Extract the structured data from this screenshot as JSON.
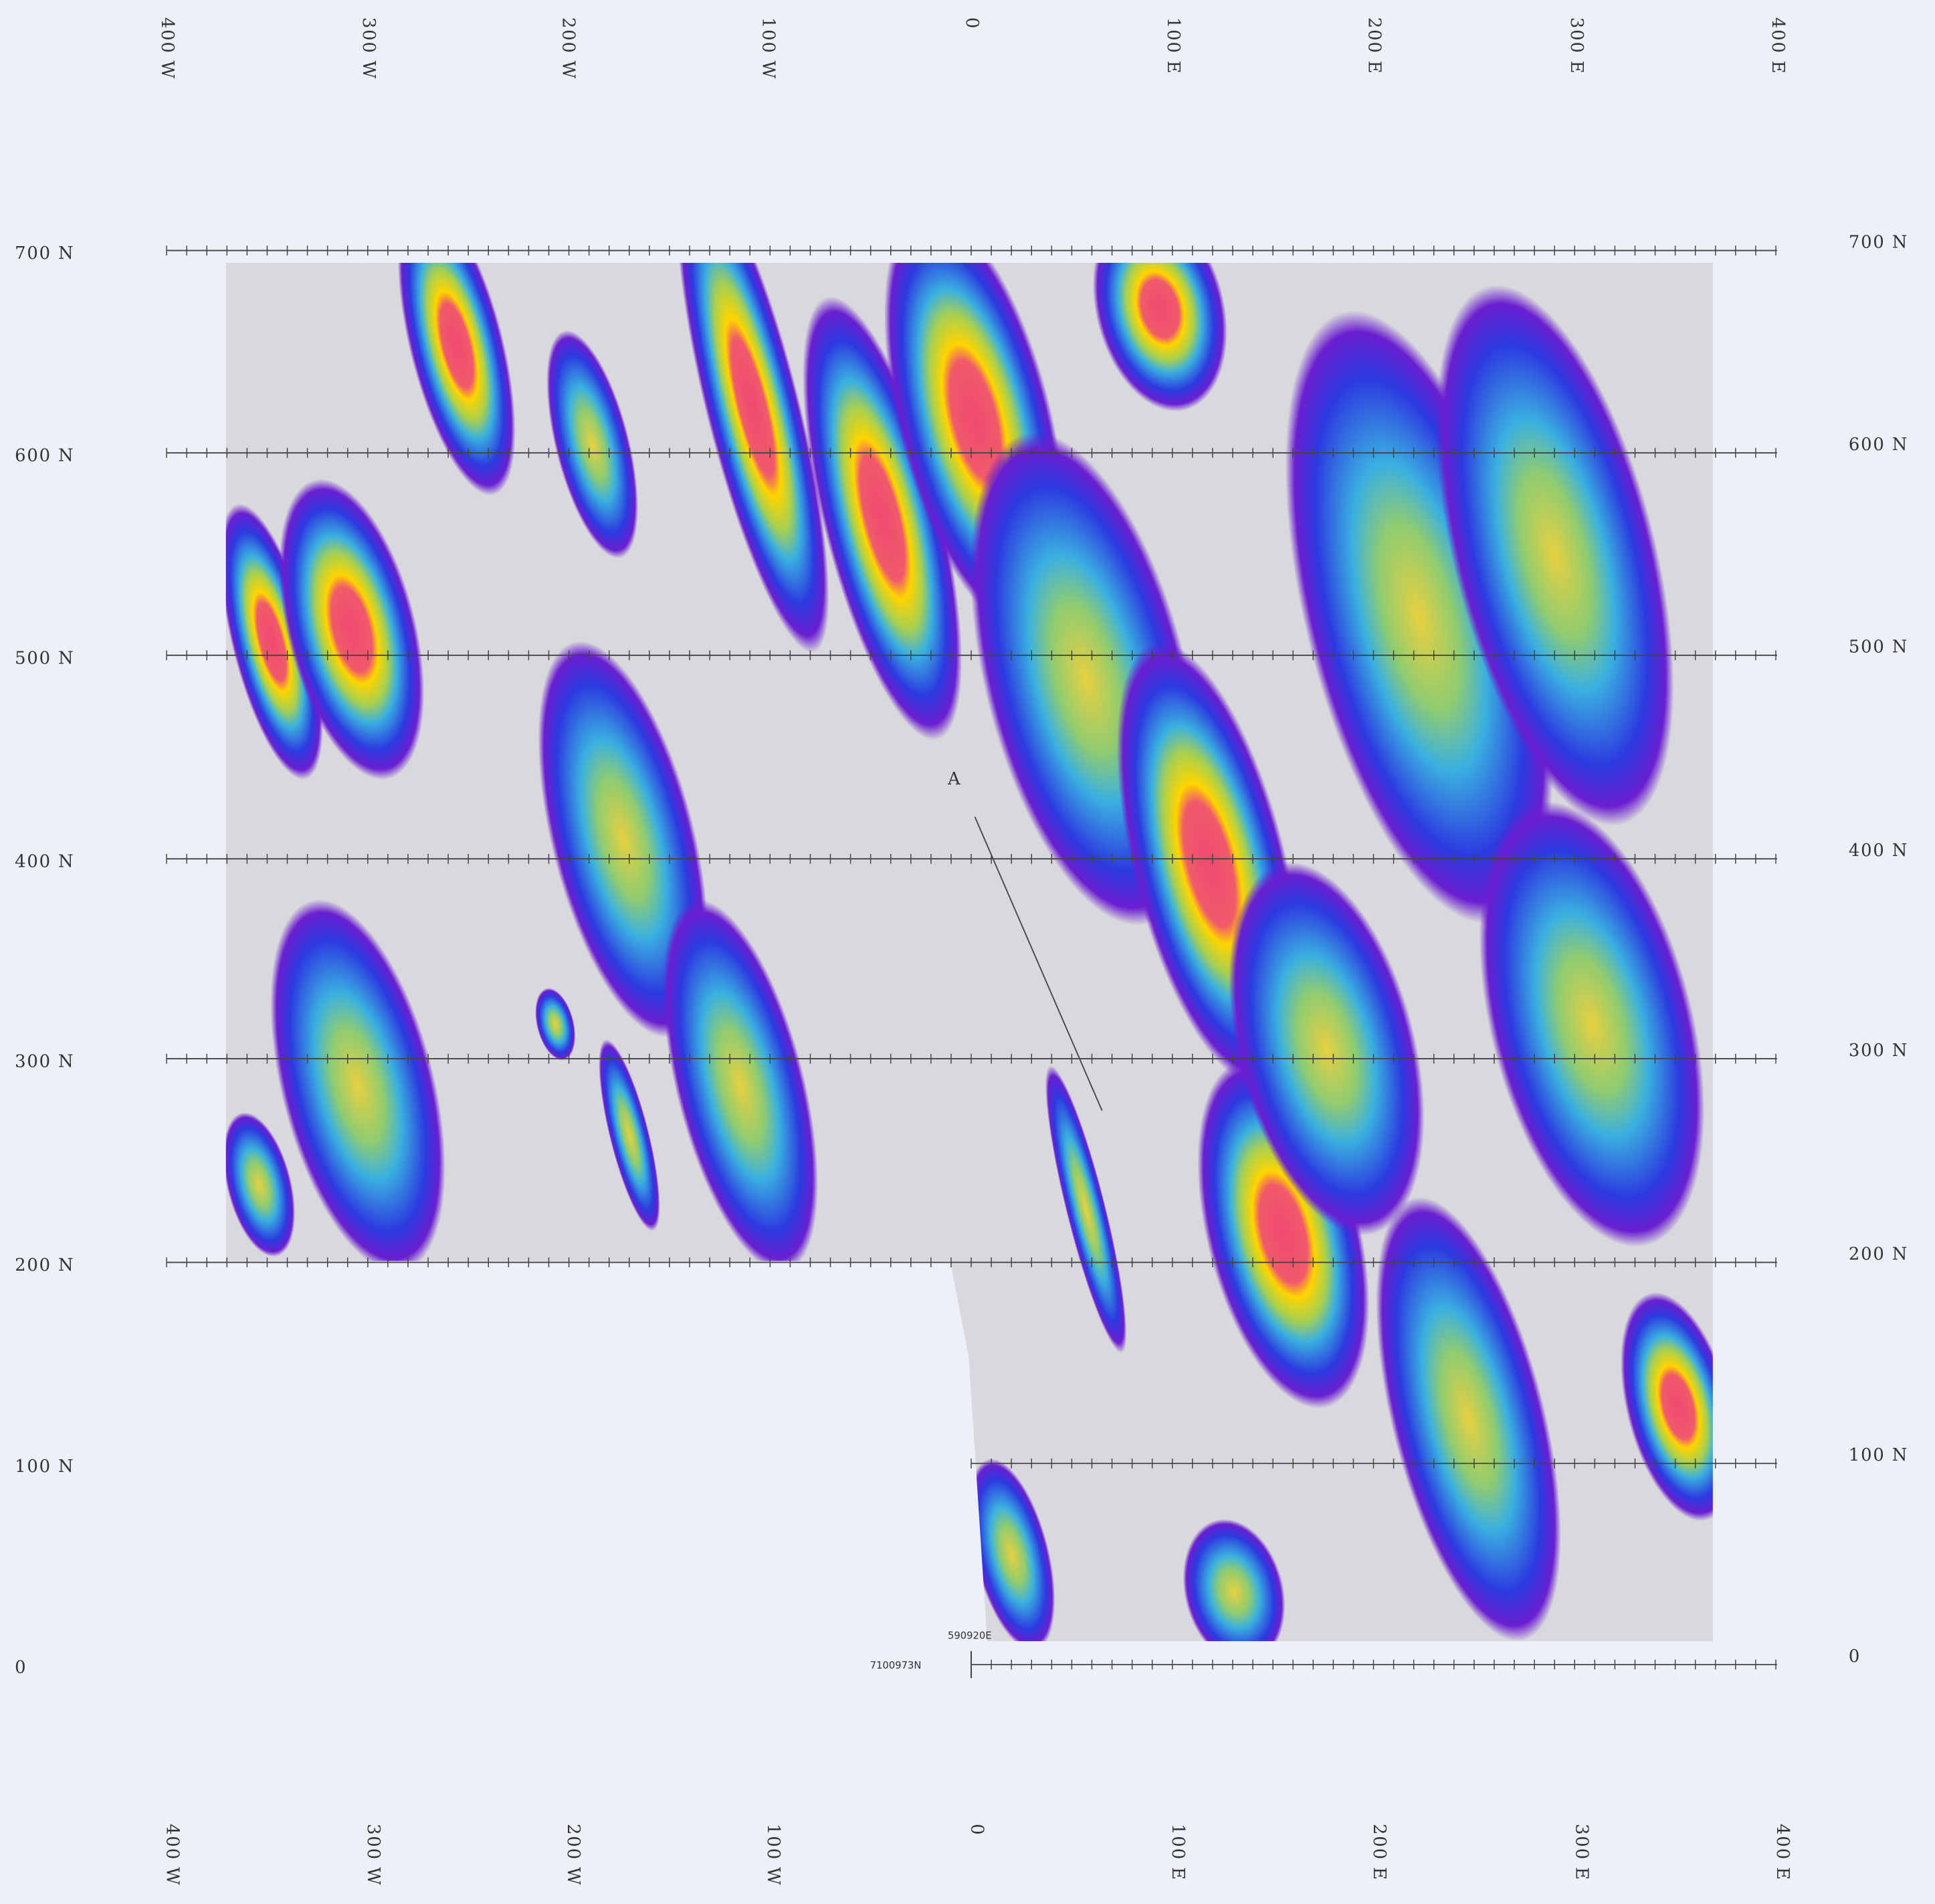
{
  "grid": {
    "eastings": [
      "400 W",
      "300 W",
      "200 W",
      "100 W",
      "0",
      "100 E",
      "200 E",
      "300 E",
      "400 E"
    ],
    "northings": [
      "700 N",
      "600 N",
      "500 N",
      "400 N",
      "300 N",
      "200 N",
      "100 N",
      "0"
    ]
  },
  "annotations": {
    "point": "A",
    "easting": "590920E",
    "northing": "7100973N"
  }
}
